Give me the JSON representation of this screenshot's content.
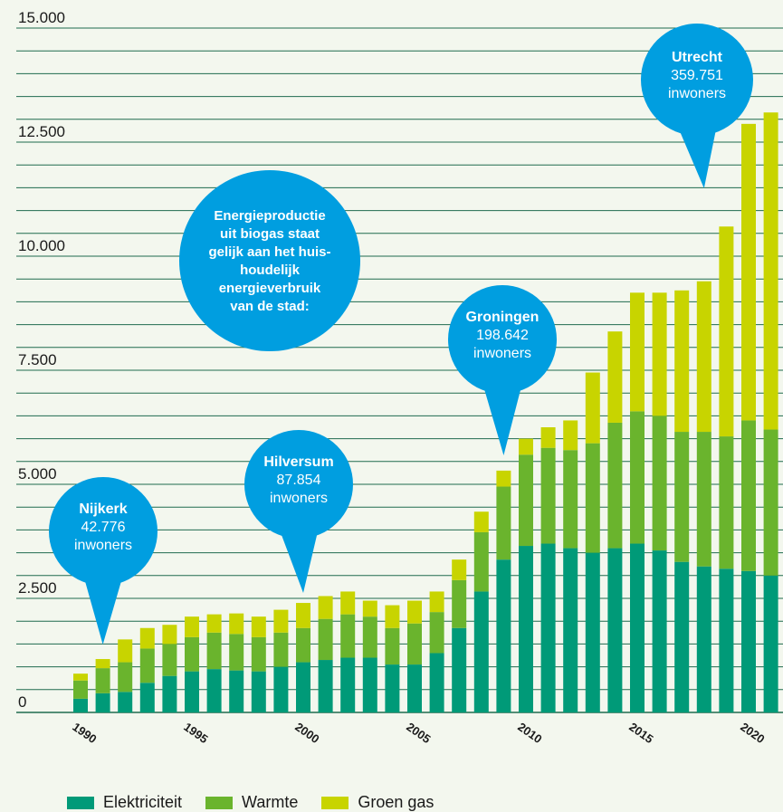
{
  "chart_data": {
    "type": "bar",
    "stacked": true,
    "categories": [
      "1990",
      "1991",
      "1992",
      "1993",
      "1994",
      "1995",
      "1996",
      "1997",
      "1998",
      "1999",
      "2000",
      "2001",
      "2002",
      "2003",
      "2004",
      "2005",
      "2006",
      "2007",
      "2008",
      "2009",
      "2010",
      "2011",
      "2012",
      "2013",
      "2014",
      "2015",
      "2016",
      "2017",
      "2018",
      "2019",
      "2020",
      "2021"
    ],
    "series": [
      {
        "name": "Elektriciteit",
        "color": "#009a78",
        "values": [
          300,
          420,
          450,
          650,
          800,
          900,
          950,
          920,
          900,
          1000,
          1100,
          1150,
          1200,
          1200,
          1050,
          1050,
          1300,
          1850,
          2650,
          3350,
          3650,
          3700,
          3600,
          3500,
          3600,
          3700,
          3550,
          3300,
          3200,
          3150,
          3100,
          3000
        ]
      },
      {
        "name": "Warmte",
        "color": "#6ab42d",
        "values": [
          400,
          550,
          650,
          750,
          700,
          750,
          800,
          800,
          750,
          750,
          750,
          900,
          950,
          900,
          800,
          900,
          900,
          1050,
          1300,
          1600,
          2000,
          2100,
          2150,
          2400,
          2750,
          2900,
          2950,
          2850,
          2950,
          2900,
          3300,
          3200
        ]
      },
      {
        "name": "Groen gas",
        "color": "#c8d400",
        "values": [
          150,
          200,
          500,
          450,
          420,
          450,
          400,
          450,
          450,
          500,
          550,
          500,
          500,
          350,
          500,
          500,
          450,
          450,
          450,
          350,
          350,
          450,
          650,
          1550,
          2000,
          2600,
          2700,
          3100,
          3300,
          4600,
          6500,
          6950
        ]
      }
    ],
    "ylim": [
      0,
      15000
    ],
    "yticks": [
      {
        "value": 0,
        "label": "0"
      },
      {
        "value": 2500,
        "label": "2.500"
      },
      {
        "value": 5000,
        "label": "5.000"
      },
      {
        "value": 7500,
        "label": "7.500"
      },
      {
        "value": 10000,
        "label": "10.000"
      },
      {
        "value": 12500,
        "label": "12.500"
      },
      {
        "value": 15000,
        "label": "15.000"
      }
    ],
    "xtick_labels": [
      "1990",
      "1995",
      "2000",
      "2005",
      "2010",
      "2015",
      "2020"
    ],
    "grid": true,
    "legend_position": "bottom-left",
    "annotations": [
      {
        "name": "Nijkerk",
        "value": "42.776",
        "unit": "inwoners",
        "category": "1991",
        "color": "#009ee0"
      },
      {
        "name": "Hilversum",
        "value": "87.854",
        "unit": "inwoners",
        "category": "2000",
        "color": "#009ee0"
      },
      {
        "name": "Groningen",
        "value": "198.642",
        "unit": "inwoners",
        "category": "2009",
        "color": "#009ee0"
      },
      {
        "name": "Utrecht",
        "value": "359.751",
        "unit": "inwoners",
        "category": "2018",
        "color": "#009ee0"
      }
    ],
    "info_text": [
      "Energieproductie",
      "uit biogas staat",
      "gelijk aan het huis-",
      "houdelijk",
      "energieverbruik",
      "van de stad:"
    ]
  },
  "legend": {
    "items": [
      {
        "label": "Elektriciteit",
        "color": "#009a78"
      },
      {
        "label": "Warmte",
        "color": "#6ab42d"
      },
      {
        "label": "Groen gas",
        "color": "#c8d400"
      }
    ]
  }
}
